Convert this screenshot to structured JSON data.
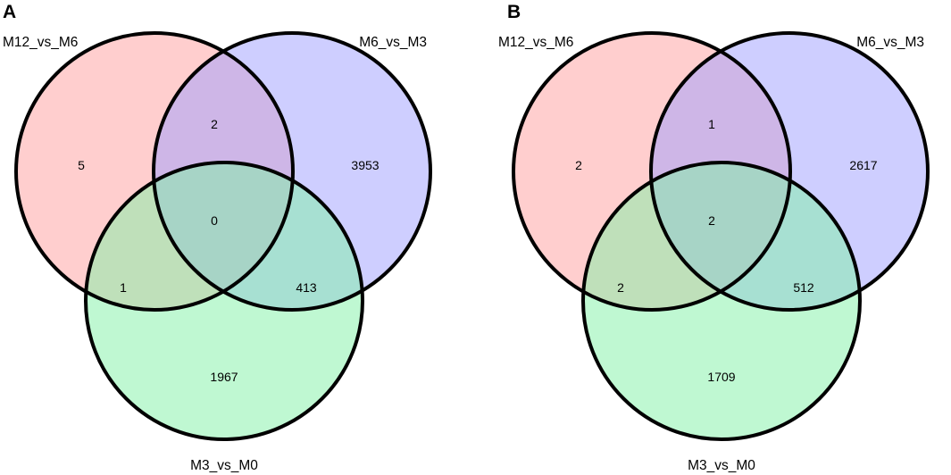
{
  "colors": {
    "set_a": "#ff9e9e",
    "set_b": "#9e9eff",
    "set_c": "#7ff2a6",
    "background": "#ffffff",
    "outline": "#000000"
  },
  "panels": [
    {
      "letter": "A",
      "sets": [
        "M12_vs_M6",
        "M6_vs_M3",
        "M3_vs_M0"
      ],
      "regions": {
        "a_only": "5",
        "b_only": "3953",
        "c_only": "1967",
        "ab": "2",
        "ac": "1",
        "bc": "413",
        "abc": "0"
      }
    },
    {
      "letter": "B",
      "sets": [
        "M12_vs_M6",
        "M6_vs_M3",
        "M3_vs_M0"
      ],
      "regions": {
        "a_only": "2",
        "b_only": "2617",
        "c_only": "1709",
        "ab": "1",
        "ac": "2",
        "bc": "512",
        "abc": "2"
      }
    }
  ]
}
